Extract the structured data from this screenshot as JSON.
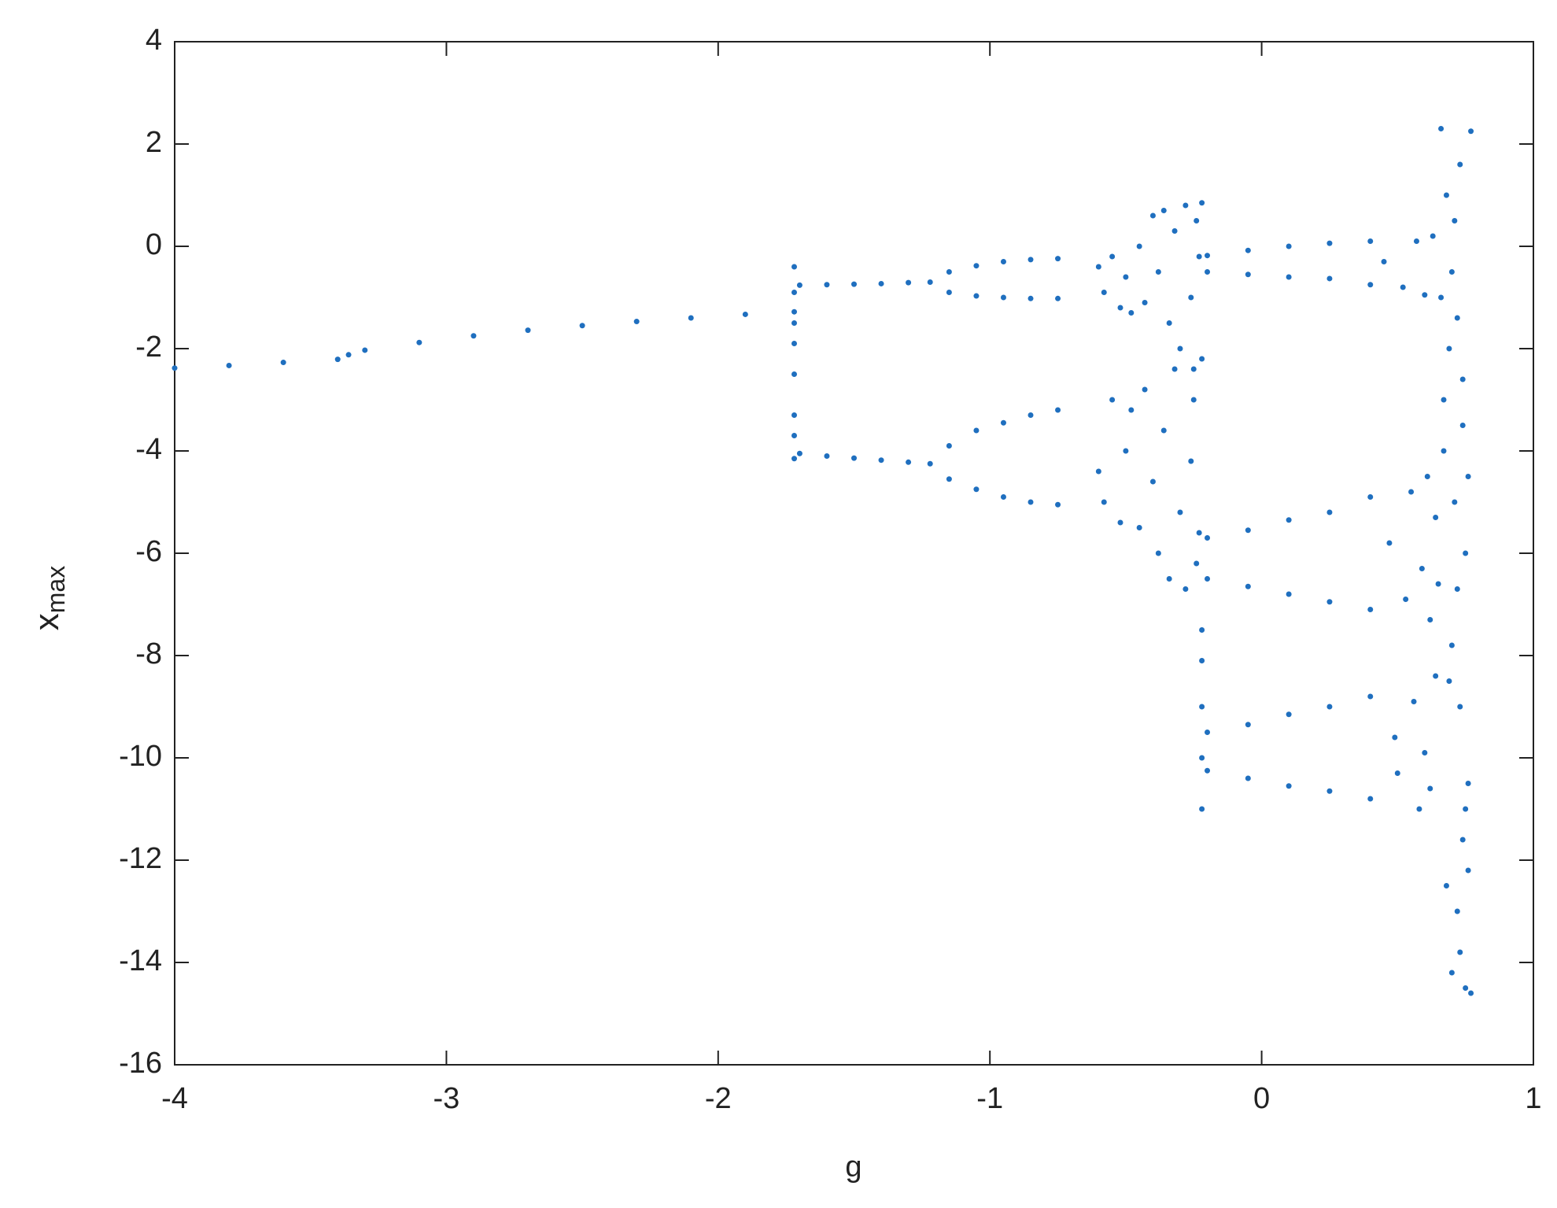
{
  "chart_data": {
    "type": "scatter",
    "xlabel": "g",
    "ylabel": "x",
    "ylabel_sub": "max",
    "color": "#1f6fbf",
    "xlim": [
      -4,
      1
    ],
    "xticks": [
      -4,
      -3,
      -2,
      -1,
      0,
      1
    ],
    "ylim": [
      -16,
      4
    ],
    "yticks": [
      -16,
      -14,
      -12,
      -10,
      -8,
      -6,
      -4,
      -2,
      0,
      2,
      4
    ],
    "x": [
      -4,
      -3.8,
      -3.6,
      -3.4,
      -3.36,
      -3.3,
      -3.1,
      -2.9,
      -2.7,
      -2.5,
      -2.3,
      -2.1,
      -1.9,
      -1.72,
      -1.7,
      -1.6,
      -1.5,
      -1.4,
      -1.3,
      -1.22,
      -1.7,
      -1.6,
      -1.5,
      -1.4,
      -1.3,
      -1.22,
      -1.15,
      -1.05,
      -0.95,
      -0.85,
      -0.75,
      -1.15,
      -1.05,
      -0.95,
      -0.85,
      -0.75,
      -1.15,
      -1.05,
      -0.95,
      -0.85,
      -0.75,
      -1.15,
      -1.05,
      -0.95,
      -0.85,
      -0.75,
      -1.72,
      -1.72,
      -1.72,
      -1.72,
      -1.72,
      -1.72,
      -1.72,
      -1.72,
      -0.6,
      -0.58,
      -0.55,
      -0.52,
      -0.5,
      -0.48,
      -0.45,
      -0.43,
      -0.4,
      -0.38,
      -0.36,
      -0.34,
      -0.32,
      -0.3,
      -0.28,
      -0.26,
      -0.25,
      -0.24,
      -0.23,
      -0.22,
      -0.6,
      -0.58,
      -0.55,
      -0.52,
      -0.5,
      -0.48,
      -0.45,
      -0.43,
      -0.4,
      -0.38,
      -0.36,
      -0.34,
      -0.32,
      -0.3,
      -0.28,
      -0.26,
      -0.25,
      -0.24,
      -0.23,
      -0.22,
      -0.22,
      -0.22,
      -0.22,
      -0.22,
      -0.22,
      -0.2,
      -0.05,
      0.1,
      0.25,
      0.4,
      -0.2,
      -0.05,
      0.1,
      0.25,
      0.4,
      -0.2,
      -0.05,
      0.1,
      0.25,
      0.4,
      -0.2,
      -0.05,
      0.1,
      0.25,
      0.4,
      -0.2,
      -0.05,
      0.1,
      0.25,
      0.4,
      -0.2,
      -0.05,
      0.1,
      0.25,
      0.4,
      0.45,
      0.47,
      0.49,
      0.5,
      0.52,
      0.53,
      0.55,
      0.56,
      0.57,
      0.58,
      0.59,
      0.6,
      0.6,
      0.61,
      0.62,
      0.62,
      0.63,
      0.64,
      0.64,
      0.65,
      0.66,
      0.67,
      0.68,
      0.68,
      0.69,
      0.7,
      0.7,
      0.71,
      0.71,
      0.72,
      0.72,
      0.73,
      0.73,
      0.74,
      0.74,
      0.75,
      0.75,
      0.76,
      0.76,
      0.77,
      0.66,
      0.67,
      0.69,
      0.7,
      0.72,
      0.73,
      0.74,
      0.75,
      0.76,
      0.77
    ],
    "values": [
      -2.38,
      -2.33,
      -2.27,
      -2.21,
      -2.12,
      -2.03,
      -1.88,
      -1.75,
      -1.64,
      -1.55,
      -1.47,
      -1.4,
      -1.33,
      -1.28,
      -0.76,
      -0.75,
      -0.74,
      -0.73,
      -0.71,
      -0.7,
      -4.05,
      -4.1,
      -4.14,
      -4.18,
      -4.22,
      -4.25,
      -0.5,
      -0.38,
      -0.3,
      -0.26,
      -0.24,
      -0.9,
      -0.97,
      -1.0,
      -1.02,
      -1.02,
      -3.9,
      -3.6,
      -3.45,
      -3.3,
      -3.2,
      -4.55,
      -4.75,
      -4.9,
      -5.0,
      -5.05,
      -0.4,
      -0.9,
      -1.5,
      -1.9,
      -2.5,
      -3.3,
      -3.7,
      -4.15,
      -0.4,
      -0.9,
      -0.2,
      -1.2,
      -0.6,
      -1.3,
      0.0,
      -1.1,
      0.6,
      -0.5,
      0.7,
      -1.5,
      0.3,
      -2.0,
      0.8,
      -1.0,
      -2.4,
      0.5,
      -0.2,
      0.85,
      -4.4,
      -5.0,
      -3.0,
      -5.4,
      -4.0,
      -3.2,
      -5.5,
      -2.8,
      -4.6,
      -6.0,
      -3.6,
      -6.5,
      -2.4,
      -5.2,
      -6.7,
      -4.2,
      -3.0,
      -6.2,
      -5.6,
      -2.2,
      -7.5,
      -8.1,
      -9.0,
      -10.0,
      -11.0,
      -0.18,
      -0.08,
      0.0,
      0.06,
      0.1,
      -0.5,
      -0.55,
      -0.6,
      -0.63,
      -0.75,
      -5.7,
      -5.55,
      -5.35,
      -5.2,
      -4.9,
      -6.5,
      -6.65,
      -6.8,
      -6.95,
      -7.1,
      -9.5,
      -9.35,
      -9.15,
      -9.0,
      -8.8,
      -10.25,
      -10.4,
      -10.55,
      -10.65,
      -10.8,
      -0.3,
      -5.8,
      -9.6,
      -10.3,
      -0.8,
      -6.9,
      -4.8,
      -8.9,
      0.1,
      -11.0,
      -6.3,
      -0.95,
      -9.9,
      -4.5,
      -7.3,
      -10.6,
      0.2,
      -5.3,
      -8.4,
      -6.6,
      2.3,
      -3.0,
      1.0,
      -12.5,
      -2.0,
      -7.8,
      -14.2,
      0.5,
      -5.0,
      -1.4,
      -13.0,
      -9.0,
      1.6,
      -3.5,
      -11.6,
      -6.0,
      -14.5,
      -10.5,
      -12.2,
      2.25,
      -1.0,
      -4.0,
      -8.5,
      -0.5,
      -6.7,
      -13.8,
      -2.6,
      -11.0,
      -4.5,
      -14.6
    ]
  }
}
